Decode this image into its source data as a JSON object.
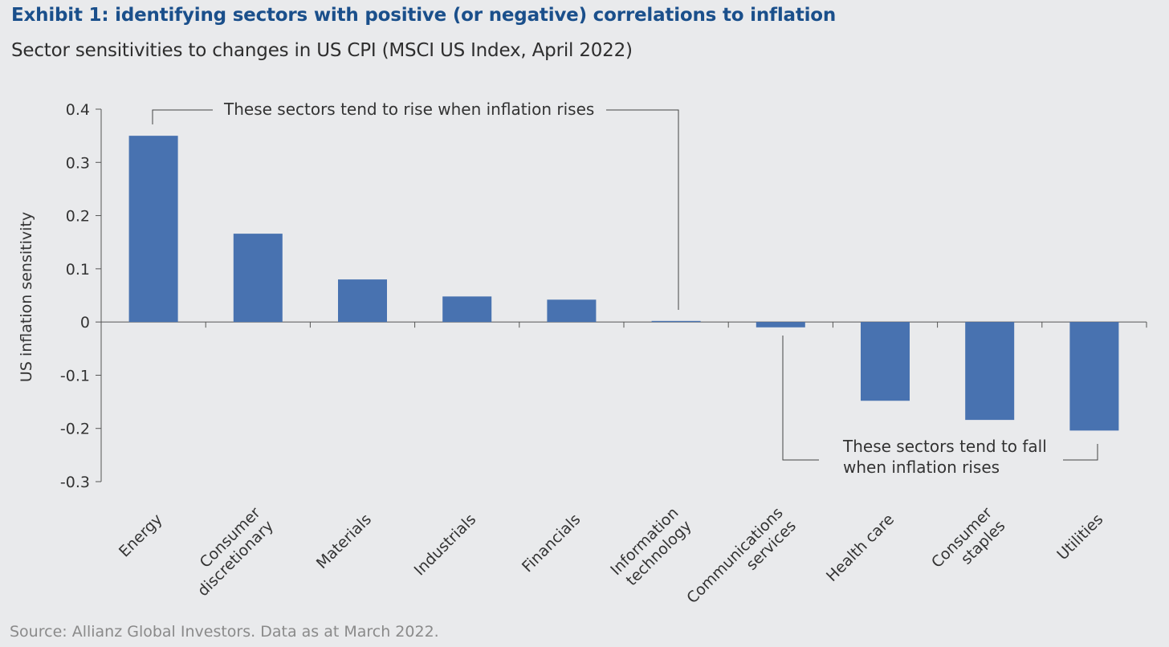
{
  "title": "Exhibit 1: identifying sectors with positive (or negative) correlations to inflation",
  "subtitle": "Sector sensitivities to changes in US CPI (MSCI US Index, April 2022)",
  "source": "Source: Allianz Global Investors. Data as at March 2022.",
  "colors": {
    "bar": "#4872b0",
    "title": "#1a4f8b",
    "background": "#e9eaec"
  },
  "chart_data": {
    "type": "bar",
    "title": "Exhibit 1: identifying sectors with positive (or negative) correlations to inflation",
    "subtitle": "Sector sensitivities to changes in US CPI (MSCI US Index, April 2022)",
    "ylabel": "US inflation sensitivity",
    "xlabel": "",
    "ylim": [
      -0.3,
      0.4
    ],
    "yticks": [
      "0.4",
      "0.3",
      "0.2",
      "0.1",
      "0",
      "-0.1",
      "-0.2",
      "-0.3"
    ],
    "ytick_values": [
      0.4,
      0.3,
      0.2,
      0.1,
      0,
      -0.1,
      -0.2,
      -0.3
    ],
    "categories": [
      [
        "Energy"
      ],
      [
        "Consumer",
        "discretionary"
      ],
      [
        "Materials"
      ],
      [
        "Industrials"
      ],
      [
        "Financials"
      ],
      [
        "Information",
        "technology"
      ],
      [
        "Communications",
        "services"
      ],
      [
        "Health care"
      ],
      [
        "Consumer",
        "staples"
      ],
      [
        "Utilities"
      ]
    ],
    "values": [
      0.35,
      0.166,
      0.08,
      0.048,
      0.042,
      0.002,
      -0.01,
      -0.148,
      -0.184,
      -0.204
    ],
    "annotations": {
      "rise": "These sectors tend to rise when inflation rises",
      "fall_line1": "These sectors tend to fall",
      "fall_line2": "when inflation rises"
    },
    "grid": false,
    "legend": "none"
  }
}
